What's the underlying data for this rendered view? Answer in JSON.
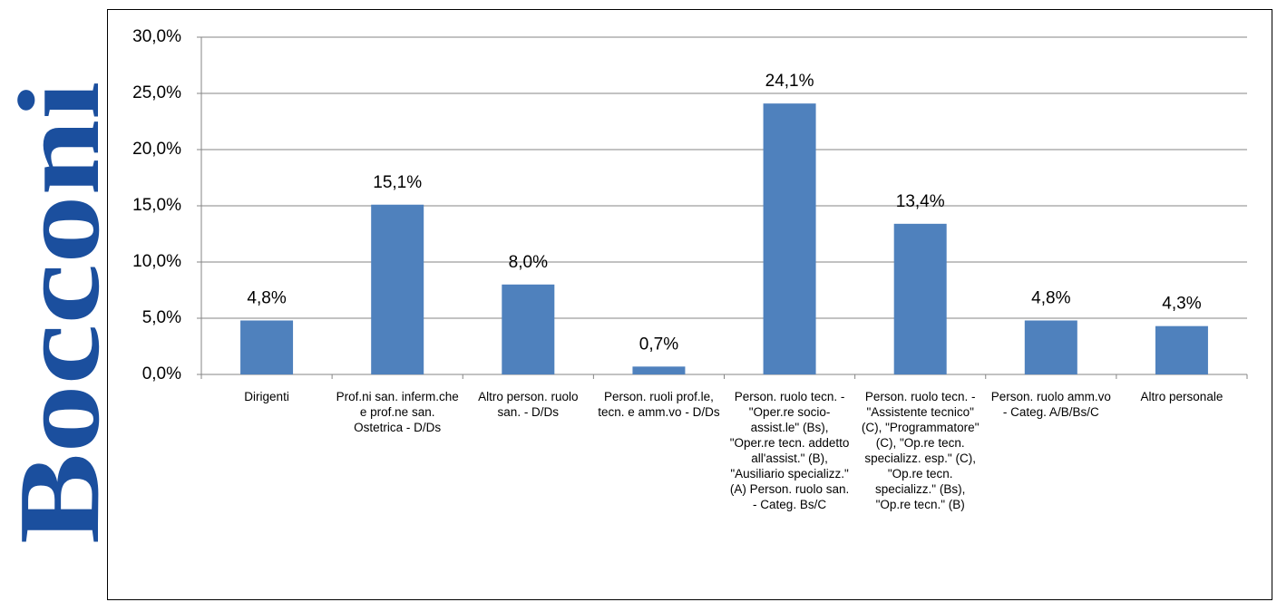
{
  "logo_text": "Bocconi",
  "chart_data": {
    "type": "bar",
    "categories": [
      "Dirigenti",
      "Prof.ni san. inferm.che e prof.ne san. Ostetrica - D/Ds",
      "Altro person. ruolo san. - D/Ds",
      "Person. ruoli prof.le, tecn. e amm.vo - D/Ds",
      "Person. ruolo tecn. - \"Oper.re socio-assist.le\" (Bs), \"Oper.re tecn. addetto all'assist.\" (B), \"Ausiliario specializz.\" (A) Person. ruolo san. - Categ. Bs/C",
      "Person. ruolo tecn. - \"Assistente tecnico\" (C), \"Programmatore\" (C), \"Op.re tecn. specializz. esp.\" (C), \"Op.re tecn. specializz.\" (Bs), \"Op.re tecn.\" (B)",
      "Person. ruolo amm.vo - Categ. A/B/Bs/C",
      "Altro personale"
    ],
    "values": [
      4.8,
      15.1,
      8.0,
      0.7,
      24.1,
      13.4,
      4.8,
      4.3
    ],
    "value_labels": [
      "4,8%",
      "15,1%",
      "8,0%",
      "0,7%",
      "24,1%",
      "13,4%",
      "4,8%",
      "4,3%"
    ],
    "color": "#4f81bd",
    "ylim": [
      0,
      30
    ],
    "yticks": [
      {
        "value": 0,
        "label": "0,0%"
      },
      {
        "value": 5,
        "label": "5,0%"
      },
      {
        "value": 10,
        "label": "10,0%"
      },
      {
        "value": 15,
        "label": "15,0%"
      },
      {
        "value": 20,
        "label": "20,0%"
      },
      {
        "value": 25,
        "label": "25,0%"
      },
      {
        "value": 30,
        "label": "30,0%"
      }
    ],
    "grid": true
  }
}
